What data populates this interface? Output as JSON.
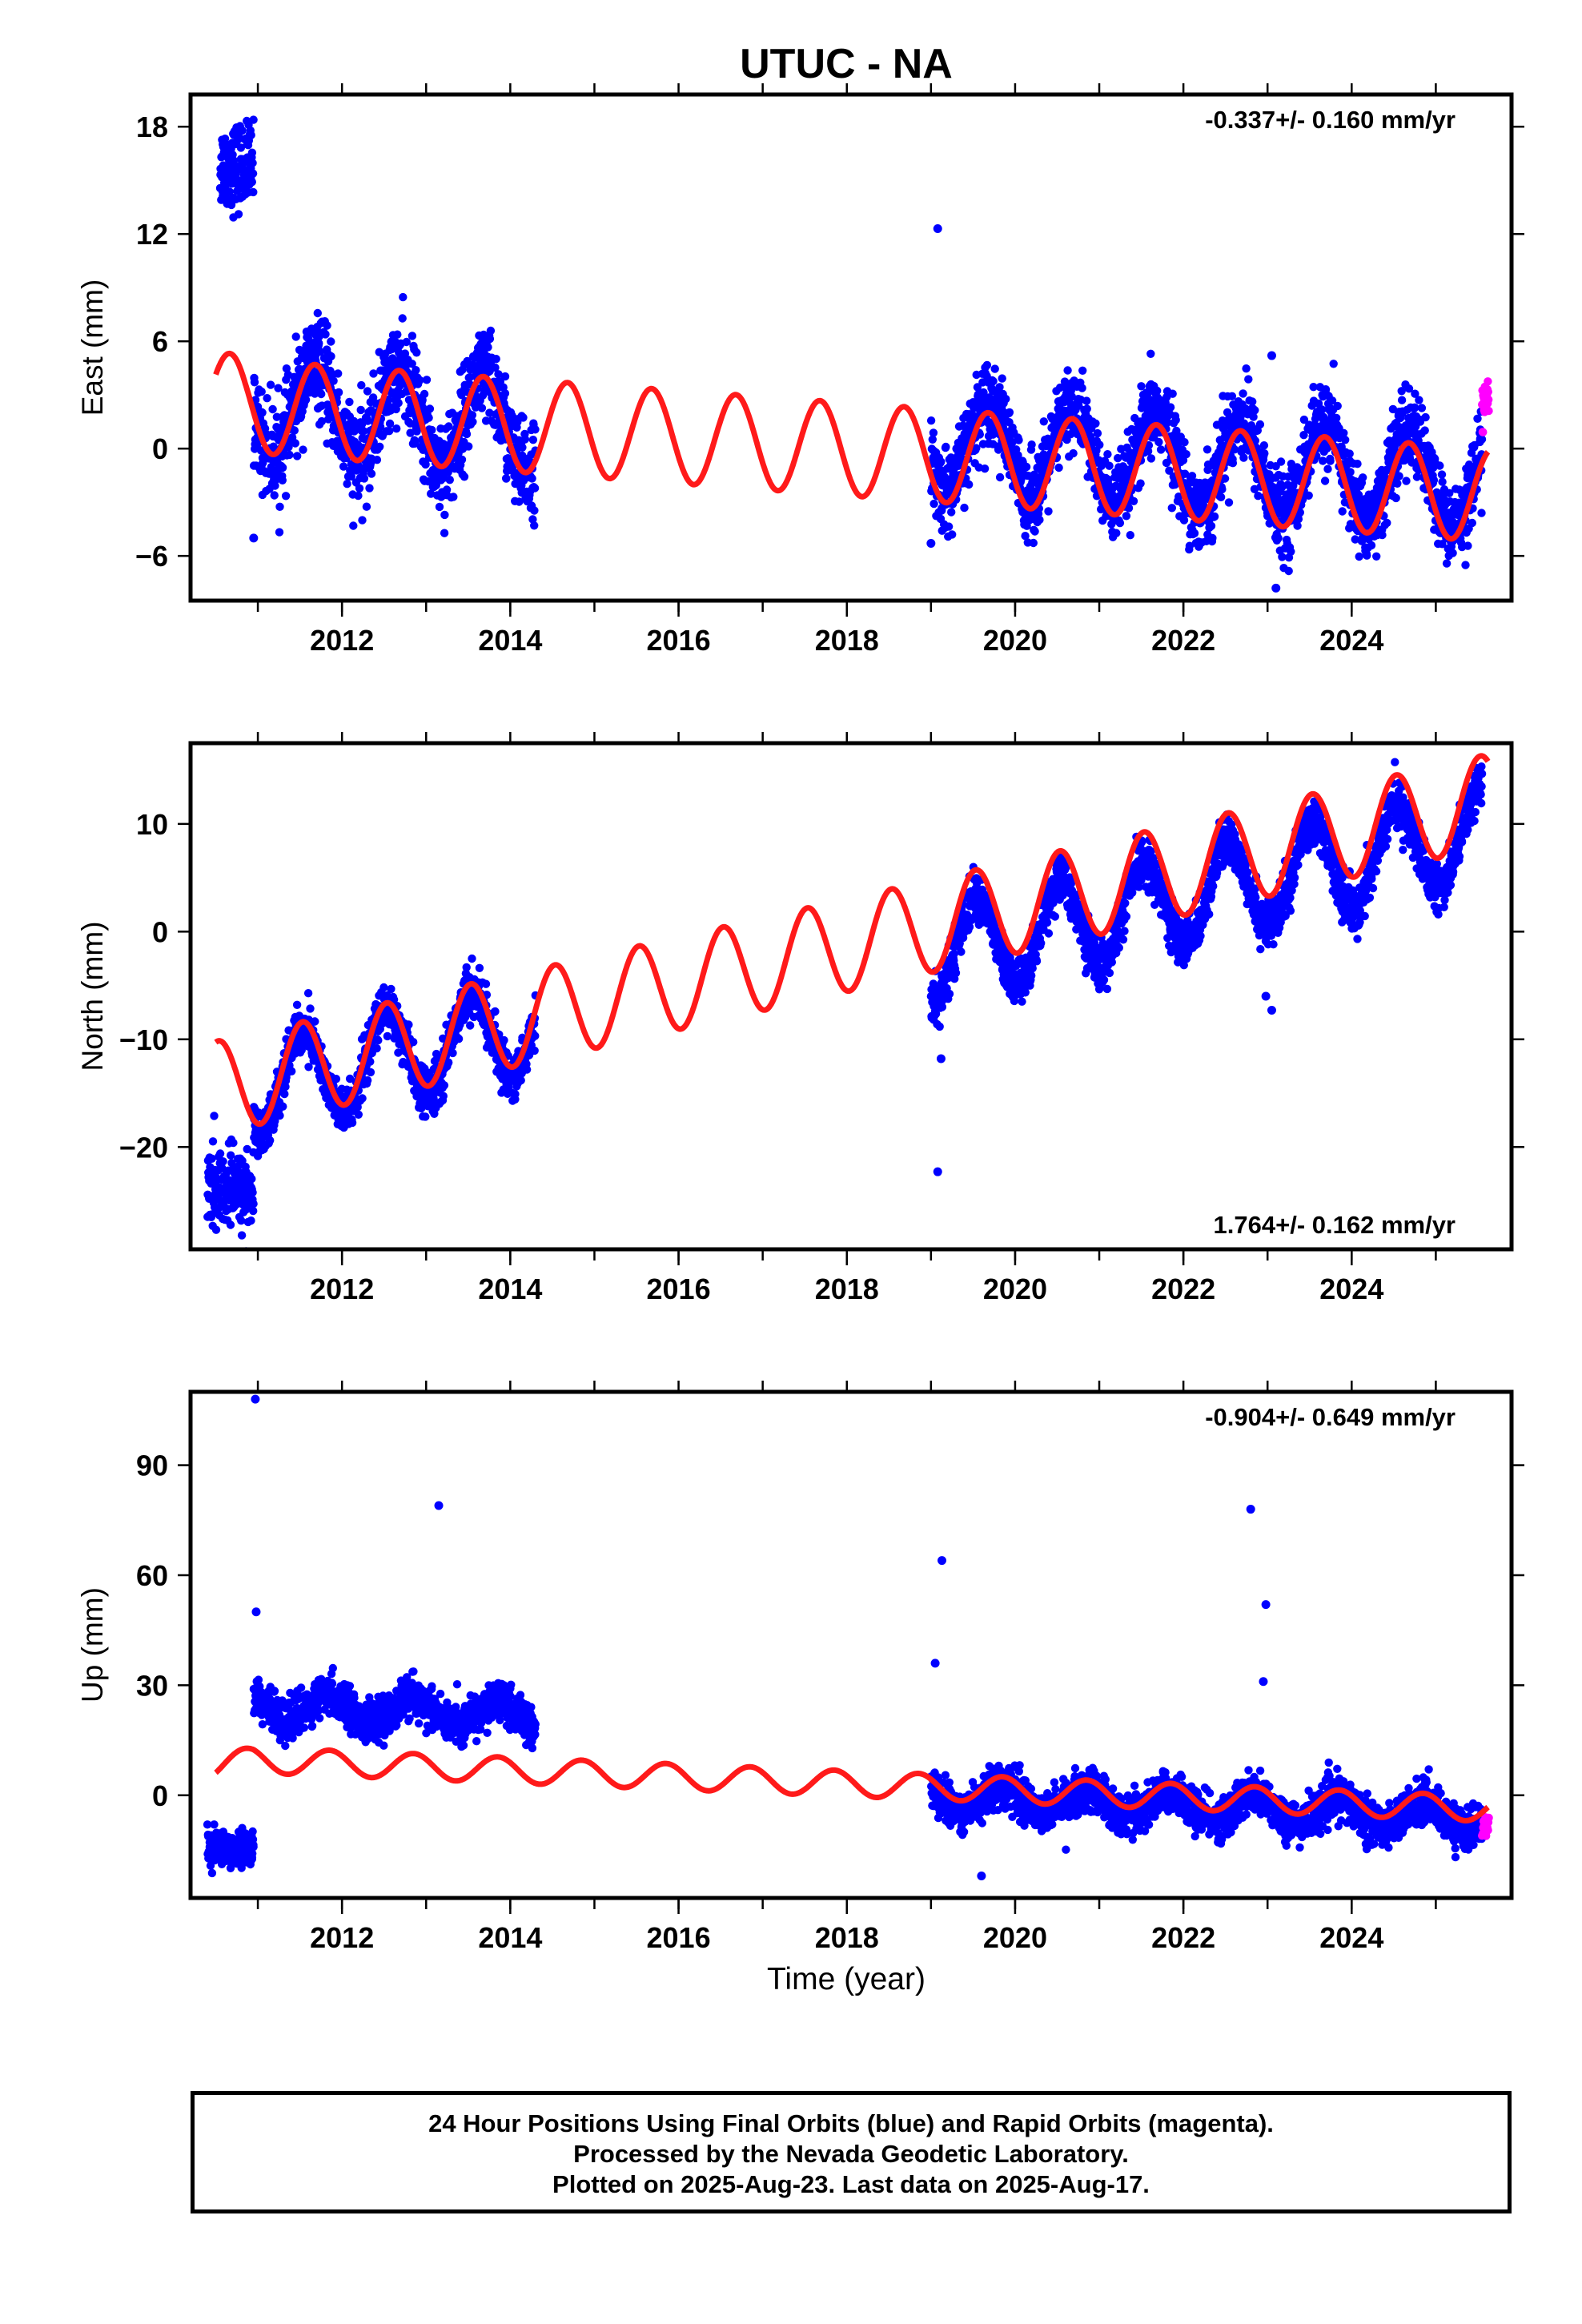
{
  "figure": {
    "title": "UTUC - NA",
    "xlabel": "Time (year)",
    "caption": [
      "24 Hour Positions Using Final Orbits (blue) and Rapid Orbits (magenta).",
      "Processed by the Nevada Geodetic Laboratory.",
      "Plotted on 2025-Aug-23. Last data on 2025-Aug-17."
    ],
    "colors": {
      "final_orbits": "#0000ff",
      "rapid_orbits": "#ff00ff",
      "model": "#ff1a1a"
    }
  },
  "chart_data": [
    {
      "type": "scatter",
      "ylabel": "East (mm)",
      "rate_label": "-0.337+/- 0.160 mm/yr",
      "rate_position": "top-right",
      "xlim": [
        2010.2,
        2025.9
      ],
      "ylim": [
        -8.5,
        19.8
      ],
      "xticks": [
        "2012",
        "2014",
        "2016",
        "2018",
        "2020",
        "2022",
        "2024"
      ],
      "yticks": [
        "18",
        "12",
        "6",
        "0",
        "−6"
      ],
      "ytick_values": [
        18,
        12,
        6,
        0,
        -6
      ],
      "model": {
        "intercept": 2.5,
        "rate": -0.337,
        "ref_year": 2010.5,
        "amplitude": 2.6,
        "phase_year": 2010.68,
        "early_offset": {
          "until": 2010.85,
          "delta": 1.0
        }
      },
      "series": [
        {
          "orbit": "final",
          "segment": [
            2010.55,
            2010.95
          ],
          "center": 15.8,
          "spread": 1.7,
          "seasonal": false
        },
        {
          "orbit": "final",
          "segment": [
            2010.95,
            2014.3
          ],
          "center": 1.8,
          "spread": 1.9,
          "seasonal": true
        },
        {
          "orbit": "final",
          "segment": [
            2019.0,
            2025.55
          ],
          "center": -0.8,
          "spread": 1.6,
          "seasonal": true
        },
        {
          "orbit": "rapid",
          "segment": [
            2025.55,
            2025.63
          ],
          "center": 0.5,
          "spread": 0.9,
          "seasonal": true
        }
      ],
      "outliers": [
        [
          2019.08,
          12.3
        ],
        [
          2010.95,
          -5.0
        ],
        [
          2019.0,
          -5.3
        ],
        [
          2023.05,
          5.2
        ],
        [
          2023.1,
          -7.8
        ]
      ]
    },
    {
      "type": "scatter",
      "ylabel": "North (mm)",
      "rate_label": "1.764+/- 0.162 mm/yr",
      "rate_position": "bottom-right",
      "xlim": [
        2010.2,
        2025.9
      ],
      "ylim": [
        -29.5,
        17.5
      ],
      "xticks": [
        "2012",
        "2014",
        "2016",
        "2018",
        "2020",
        "2022",
        "2024"
      ],
      "yticks": [
        "10",
        "0",
        "−10",
        "−20"
      ],
      "ytick_values": [
        10,
        0,
        -10,
        -20
      ],
      "model": {
        "intercept": -14.5,
        "rate": 1.764,
        "ref_year": 2010.5,
        "amplitude": 4.3,
        "phase_year": 2010.53,
        "early_offset": {
          "until": 2010.95,
          "delta": 0.0
        }
      },
      "series": [
        {
          "orbit": "final",
          "segment": [
            2010.4,
            2010.95
          ],
          "center": -24.0,
          "spread": 2.6,
          "seasonal": false
        },
        {
          "orbit": "final",
          "segment": [
            2010.95,
            2014.3
          ],
          "center": -11.5,
          "spread": 1.6,
          "seasonal": true
        },
        {
          "orbit": "final",
          "segment": [
            2019.0,
            2025.55
          ],
          "center": 3.5,
          "spread": 1.6,
          "seasonal": true
        },
        {
          "orbit": "rapid",
          "segment": [
            2025.55,
            2025.63
          ],
          "center": 15.0,
          "spread": 1.0,
          "seasonal": true
        }
      ],
      "outliers": [
        [
          2019.08,
          -22.3
        ],
        [
          2019.12,
          -11.8
        ],
        [
          2023.05,
          -7.3
        ],
        [
          2022.98,
          -6.0
        ]
      ]
    },
    {
      "type": "scatter",
      "ylabel": "Up (mm)",
      "rate_label": "-0.904+/- 0.649 mm/yr",
      "rate_position": "top-right",
      "xlim": [
        2010.2,
        2025.9
      ],
      "ylim": [
        -28,
        110
      ],
      "xticks": [
        "2012",
        "2014",
        "2016",
        "2018",
        "2020",
        "2022",
        "2024"
      ],
      "yticks": [
        "90",
        "60",
        "30",
        "0"
      ],
      "ytick_values": [
        90,
        60,
        30,
        0
      ],
      "model": {
        "intercept": 10.0,
        "rate": -0.904,
        "ref_year": 2010.5,
        "amplitude": 3.5,
        "phase_year": 2010.85,
        "early_offset": {
          "until": 2010.95,
          "delta": -3.0
        }
      },
      "series": [
        {
          "orbit": "final",
          "segment": [
            2010.4,
            2010.95
          ],
          "center": -14.0,
          "spread": 3.5,
          "seasonal": false
        },
        {
          "orbit": "final",
          "segment": [
            2010.95,
            2014.3
          ],
          "center": 23.0,
          "spread": 3.8,
          "seasonal": true
        },
        {
          "orbit": "final",
          "segment": [
            2019.0,
            2025.55
          ],
          "center": -3.0,
          "spread": 4.0,
          "seasonal": true
        },
        {
          "orbit": "rapid",
          "segment": [
            2025.55,
            2025.63
          ],
          "center": -8.5,
          "spread": 1.8,
          "seasonal": true
        }
      ],
      "outliers": [
        [
          2010.97,
          108
        ],
        [
          2013.15,
          79
        ],
        [
          2019.13,
          64
        ],
        [
          2019.05,
          36
        ],
        [
          2022.8,
          78
        ],
        [
          2022.98,
          52
        ],
        [
          2010.98,
          50
        ],
        [
          2022.95,
          31
        ],
        [
          2019.6,
          -22
        ]
      ]
    }
  ]
}
